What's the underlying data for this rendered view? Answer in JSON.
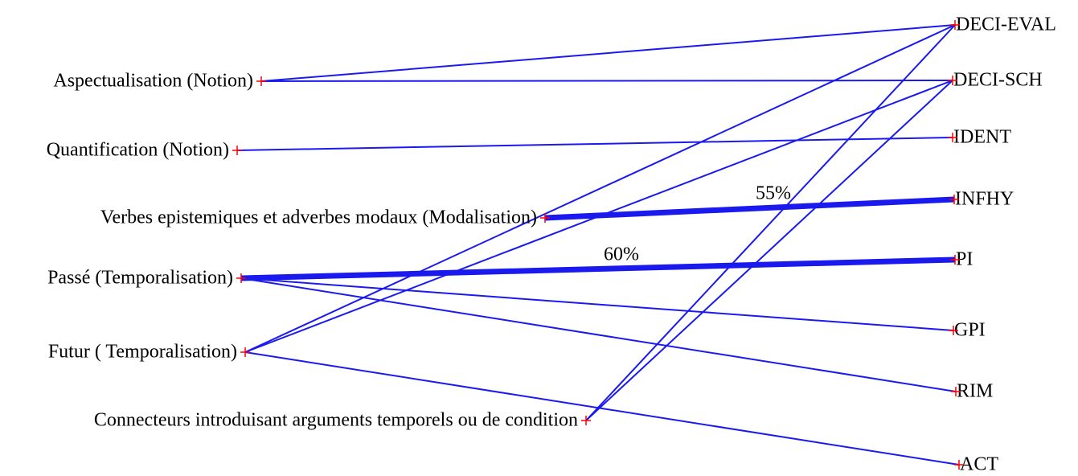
{
  "left": [
    {
      "label": "Aspectualisation (Notion)"
    },
    {
      "label": "Quantification (Notion)"
    },
    {
      "label": "Verbes epistemiques et adverbes modaux (Modalisation)"
    },
    {
      "label": "Passé (Temporalisation)"
    },
    {
      "label": "Futur ( Temporalisation)"
    },
    {
      "label": "Connecteurs introduisant arguments temporels ou de condition"
    }
  ],
  "right": [
    {
      "label": "DECI-EVAL"
    },
    {
      "label": "DECI-SCH"
    },
    {
      "label": "IDENT"
    },
    {
      "label": "INFHY"
    },
    {
      "label": "PI"
    },
    {
      "label": "GPI"
    },
    {
      "label": "RIM"
    },
    {
      "label": "ACT"
    }
  ],
  "edges": [
    {
      "from": 0,
      "to": 0
    },
    {
      "from": 0,
      "to": 1
    },
    {
      "from": 1,
      "to": 2
    },
    {
      "from": 2,
      "to": 3,
      "label": "55%"
    },
    {
      "from": 3,
      "to": 4,
      "label": "60%"
    },
    {
      "from": 3,
      "to": 5
    },
    {
      "from": 3,
      "to": 6
    },
    {
      "from": 4,
      "to": 0
    },
    {
      "from": 4,
      "to": 1
    },
    {
      "from": 4,
      "to": 7
    },
    {
      "from": 5,
      "to": 0
    },
    {
      "from": 5,
      "to": 1
    }
  ]
}
